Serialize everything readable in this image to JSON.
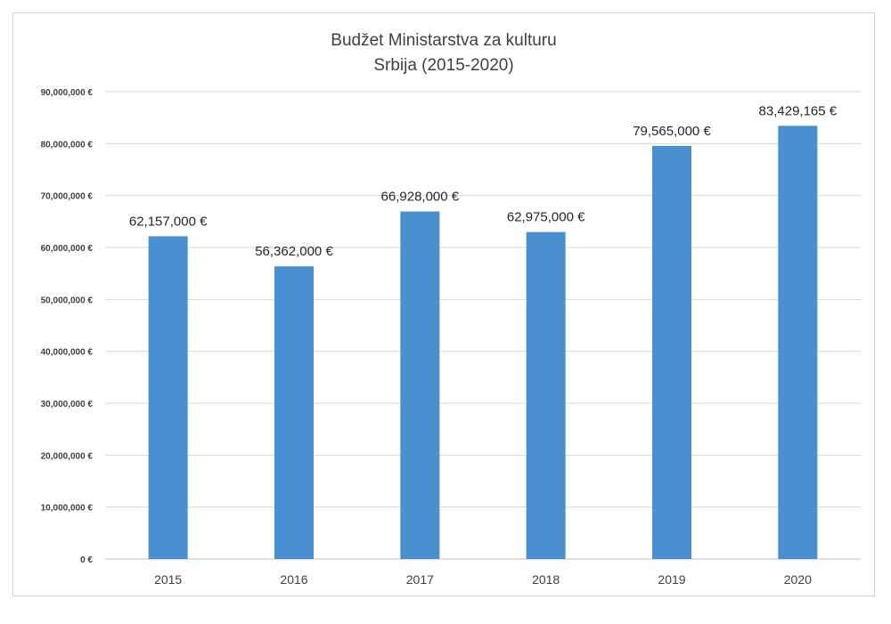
{
  "chart_data": {
    "type": "bar",
    "title_lines": [
      "Budžet Ministarstva za kulturu",
      "Srbija (2015-2020)"
    ],
    "categories": [
      "2015",
      "2016",
      "2017",
      "2018",
      "2019",
      "2020"
    ],
    "values": [
      62157000,
      56362000,
      66928000,
      62975000,
      79565000,
      83429165
    ],
    "data_labels": [
      "62,157,000 €",
      "56,362,000 €",
      "66,928,000 €",
      "62,975,000 €",
      "79,565,000 €",
      "83,429,165 €"
    ],
    "ylim": [
      0,
      90000000
    ],
    "yticks": [
      0,
      10000000,
      20000000,
      30000000,
      40000000,
      50000000,
      60000000,
      70000000,
      80000000,
      90000000
    ],
    "ytick_labels": [
      "0 €",
      "10,000,000 €",
      "20,000,000 €",
      "30,000,000 €",
      "40,000,000 €",
      "50,000,000 €",
      "60,000,000 €",
      "70,000,000 €",
      "80,000,000 €",
      "90,000,000 €"
    ],
    "xlabel": "",
    "ylabel": "",
    "grid": true,
    "legend": "none",
    "bar_color": "#4a8fd0",
    "grid_color": "#d9d9d9"
  }
}
